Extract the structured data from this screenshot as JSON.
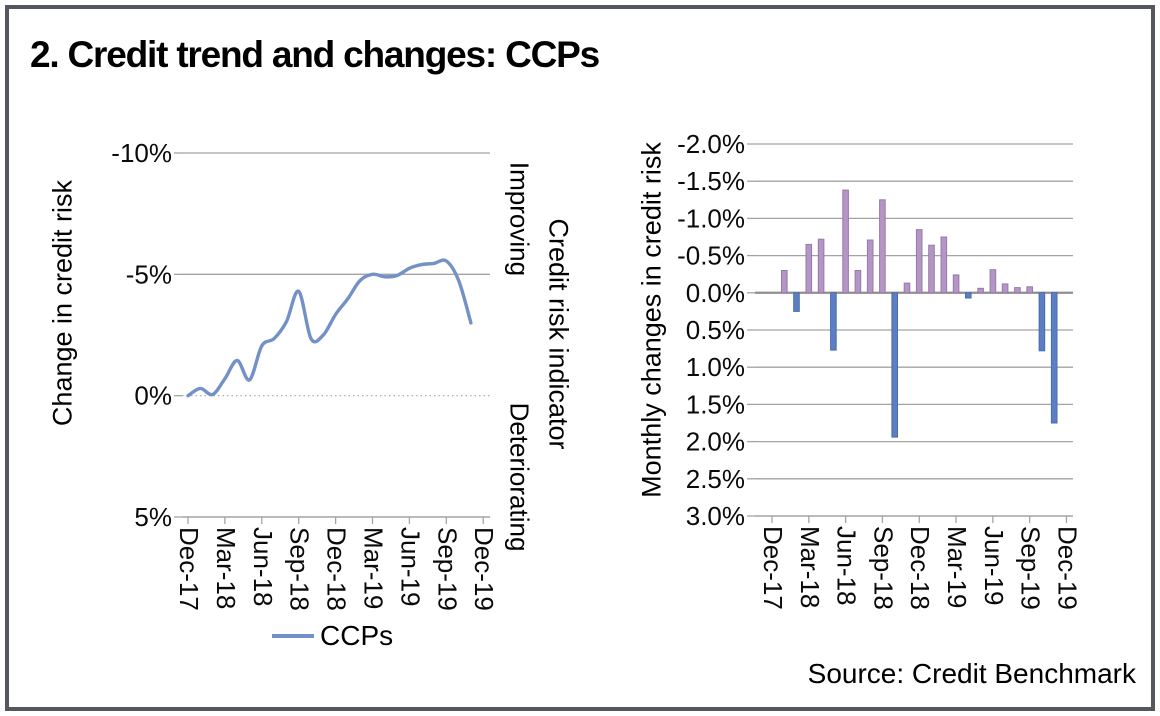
{
  "frame": {
    "title": "2. Credit trend and changes: CCPs",
    "source": "Source: Credit Benchmark"
  },
  "colors": {
    "line": "#7390C7",
    "improving_fill": "#B496C5",
    "improving_border": "#9879AC",
    "deteriorating_fill": "#5C7EC2",
    "deteriorating_border": "#4A6CB0",
    "grid": "#A3A3A3",
    "zero_line": "#8F8F8F",
    "axis": "#A3A3A3"
  },
  "chart_data": [
    {
      "type": "line",
      "title": "",
      "y_axis_label": "Change in credit risk",
      "y_axis_inverted": true,
      "ylim": [
        -10,
        5
      ],
      "y_ticks": [
        {
          "label": "-10%",
          "value": -10
        },
        {
          "label": "-5%",
          "value": -5
        },
        {
          "label": "0%",
          "value": 0,
          "style": "dotted"
        },
        {
          "label": "5%",
          "value": 5,
          "style": "axis"
        }
      ],
      "x_tick_labels": [
        "Dec-17",
        "Mar-18",
        "Jun-18",
        "Sep-18",
        "Dec-18",
        "Mar-19",
        "Jun-19",
        "Sep-19",
        "Dec-19"
      ],
      "x": [
        "Dec-17",
        "Jan-18",
        "Feb-18",
        "Mar-18",
        "Apr-18",
        "May-18",
        "Jun-18",
        "Jul-18",
        "Aug-18",
        "Sep-18",
        "Oct-18",
        "Nov-18",
        "Dec-18",
        "Jan-19",
        "Feb-19",
        "Mar-19",
        "Apr-19",
        "May-19",
        "Jun-19",
        "Jul-19",
        "Aug-19",
        "Sep-19",
        "Oct-19",
        "Nov-19"
      ],
      "series": [
        {
          "name": "CCPs",
          "values": [
            0,
            -0.3,
            -0.05,
            -0.7,
            -1.45,
            -0.65,
            -2.05,
            -2.35,
            -3.05,
            -4.3,
            -2.35,
            -2.5,
            -3.35,
            -4.0,
            -4.75,
            -5.0,
            -4.9,
            -4.95,
            -5.25,
            -5.4,
            -5.45,
            -5.55,
            -4.75,
            -3.0
          ]
        }
      ],
      "legend": {
        "label": "CCPs",
        "position": "bottom"
      },
      "right_axis_annotations": {
        "top": "Improving",
        "bottom": "Deteriorating",
        "title": "Credit risk indicator"
      }
    },
    {
      "type": "bar",
      "title": "",
      "y_axis_label": "Monthly changes in credit risk",
      "y_axis_inverted": true,
      "ylim": [
        -2,
        3
      ],
      "y_ticks": [
        {
          "label": "-2.0%",
          "value": -2
        },
        {
          "label": "-1.5%",
          "value": -1.5
        },
        {
          "label": "-1.0%",
          "value": -1
        },
        {
          "label": "-0.5%",
          "value": -0.5
        },
        {
          "label": "0.0%",
          "value": 0
        },
        {
          "label": "0.5%",
          "value": 0.5
        },
        {
          "label": "1.0%",
          "value": 1
        },
        {
          "label": "1.5%",
          "value": 1.5
        },
        {
          "label": "2.0%",
          "value": 2
        },
        {
          "label": "2.5%",
          "value": 2.5
        },
        {
          "label": "3.0%",
          "value": 3,
          "style": "axis"
        }
      ],
      "x_tick_labels": [
        "Dec-17",
        "Mar-18",
        "Jun-18",
        "Sep-18",
        "Dec-18",
        "Mar-19",
        "Jun-19",
        "Sep-19",
        "Dec-19"
      ],
      "categories": [
        "Jan-18",
        "Feb-18",
        "Mar-18",
        "Apr-18",
        "May-18",
        "Jun-18",
        "Jul-18",
        "Aug-18",
        "Sep-18",
        "Oct-18",
        "Nov-18",
        "Dec-18",
        "Jan-19",
        "Feb-19",
        "Mar-19",
        "Apr-19",
        "May-19",
        "Jun-19",
        "Jul-19",
        "Aug-19",
        "Sep-19",
        "Oct-19",
        "Nov-19"
      ],
      "values": [
        -0.3,
        0.25,
        -0.65,
        -0.72,
        0.77,
        -1.38,
        -0.3,
        -0.71,
        -1.25,
        1.94,
        -0.13,
        -0.85,
        -0.64,
        -0.75,
        -0.24,
        0.07,
        -0.06,
        -0.31,
        -0.12,
        -0.07,
        -0.08,
        0.78,
        1.75
      ],
      "bar_semantics": {
        "negative": "improving",
        "positive": "deteriorating"
      }
    }
  ]
}
